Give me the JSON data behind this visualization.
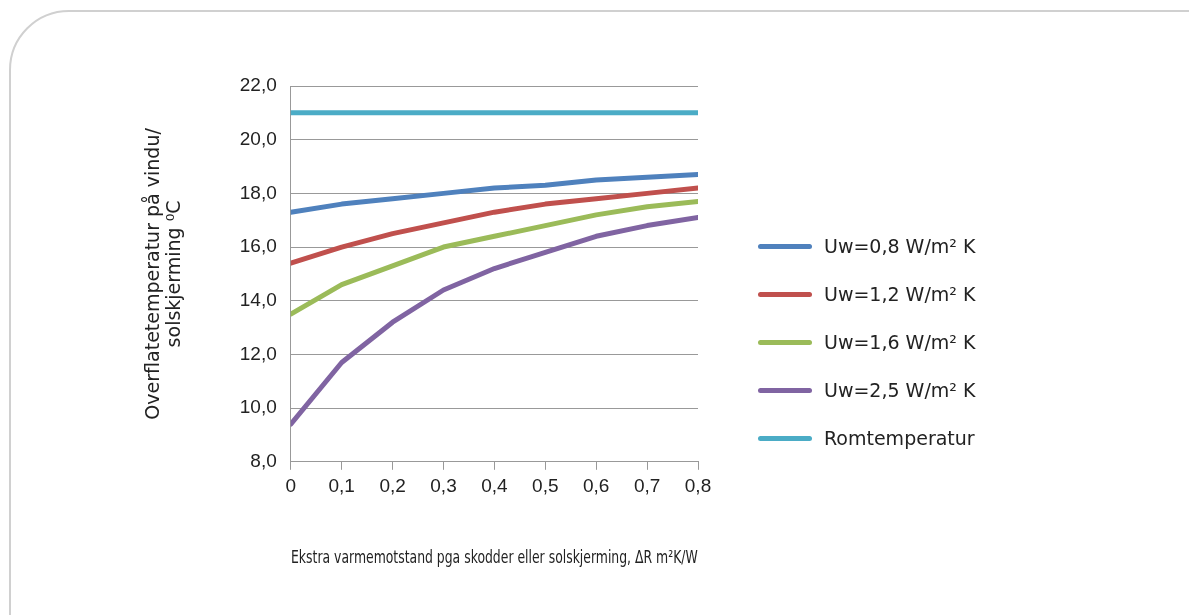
{
  "chart_data": {
    "type": "line",
    "xlabel": "Ekstra varmemotstand pga skodder eller solskjerming, ΔR m²K/W",
    "ylabel": "Overflatetemperatur på vindu/\nsolskjerming ⁰C",
    "x": [
      0,
      0.1,
      0.2,
      0.3,
      0.4,
      0.5,
      0.6,
      0.7,
      0.8
    ],
    "series": [
      {
        "name": "Uw=0,8 W/m² K",
        "color": "#4f81bd",
        "values": [
          17.3,
          17.6,
          17.8,
          18.0,
          18.2,
          18.3,
          18.5,
          18.6,
          18.7
        ]
      },
      {
        "name": "Uw=1,2 W/m² K",
        "color": "#c0504d",
        "values": [
          15.4,
          16.0,
          16.5,
          16.9,
          17.3,
          17.6,
          17.8,
          18.0,
          18.2
        ]
      },
      {
        "name": "Uw=1,6 W/m² K",
        "color": "#9bbb59",
        "values": [
          13.5,
          14.6,
          15.3,
          16.0,
          16.4,
          16.8,
          17.2,
          17.5,
          17.7
        ]
      },
      {
        "name": "Uw=2,5 W/m² K",
        "color": "#8064a2",
        "values": [
          9.4,
          11.7,
          13.2,
          14.4,
          15.2,
          15.8,
          16.4,
          16.8,
          17.1
        ]
      },
      {
        "name": "Romtemperatur",
        "color": "#4bacc6",
        "values": [
          21.0,
          21.0,
          21.0,
          21.0,
          21.0,
          21.0,
          21.0,
          21.0,
          21.0
        ]
      }
    ],
    "xlim": [
      0,
      0.8
    ],
    "xticks": [
      0,
      {
        "value": 0.1,
        "label": "0,1"
      },
      {
        "value": 0.2,
        "label": "0,2"
      },
      {
        "value": 0.3,
        "label": "0,3"
      },
      {
        "value": 0.4,
        "label": "0,4"
      },
      {
        "value": 0.5,
        "label": "0,5"
      },
      {
        "value": 0.6,
        "label": "0,6"
      },
      {
        "value": 0.7,
        "label": "0,7"
      },
      {
        "value": 0.8,
        "label": "0,8"
      }
    ],
    "ylim": [
      8,
      22
    ],
    "yticks": [
      {
        "value": 8,
        "label": "8,0"
      },
      {
        "value": 10,
        "label": "10,0"
      },
      {
        "value": 12,
        "label": "12,0"
      },
      {
        "value": 14,
        "label": "14,0"
      },
      {
        "value": 16,
        "label": "16,0"
      },
      {
        "value": 18,
        "label": "18,0"
      },
      {
        "value": 20,
        "label": "20,0"
      },
      {
        "value": 22,
        "label": "22,0"
      }
    ],
    "grid": "y",
    "legend": "right",
    "marker": "none",
    "line_style": "solid"
  }
}
